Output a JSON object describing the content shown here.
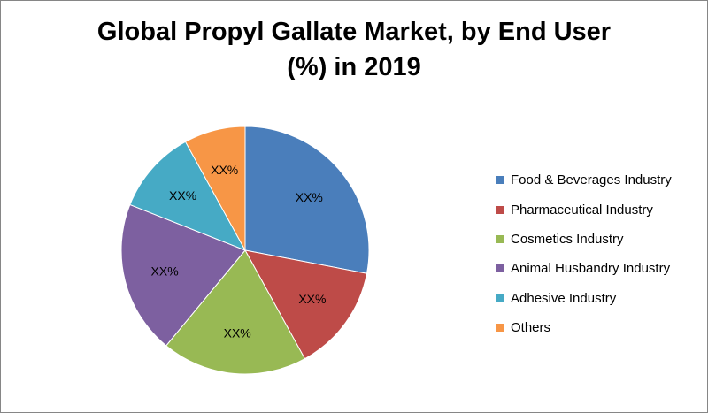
{
  "chart_data": {
    "type": "pie",
    "title_line1": "Global Propyl Gallate Market, by End User",
    "title_line2": "(%) in 2019",
    "legend_position": "right",
    "series": [
      {
        "name": "Food & Beverages Industry",
        "value": 28,
        "label": "XX%",
        "color": "#4a7ebb"
      },
      {
        "name": "Pharmaceutical Industry",
        "value": 14,
        "label": "XX%",
        "color": "#be4b48"
      },
      {
        "name": "Cosmetics Industry",
        "value": 19,
        "label": "XX%",
        "color": "#98b954"
      },
      {
        "name": "Animal Husbandry Industry",
        "value": 20,
        "label": "XX%",
        "color": "#7d60a0"
      },
      {
        "name": "Adhesive Industry",
        "value": 11,
        "label": "XX%",
        "color": "#46aac5"
      },
      {
        "name": "Others",
        "value": 8,
        "label": "XX%",
        "color": "#f79646"
      }
    ]
  }
}
